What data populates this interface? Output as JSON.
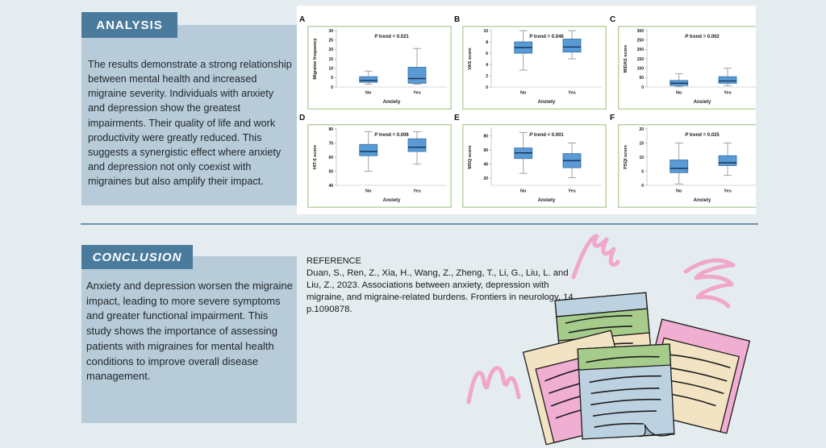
{
  "analysis": {
    "header": "ANALYSIS",
    "body": "The results demonstrate a strong relationship between mental health and increased migraine severity. Individuals with anxiety and depression show the greatest impairments. Their quality of life and work productivity were greatly reduced. This suggests a synergistic effect where anxiety and depression not only coexist with migraines but also amplify their impact."
  },
  "conclusion": {
    "header": "CONCLUSION",
    "body": "Anxiety and depression worsen the migraine impact, leading to more severe symptoms and greater functional impairment. This study shows the importance of assessing patients with migraines for mental health conditions to improve overall disease management."
  },
  "reference": {
    "heading": "REFERENCE",
    "citation": "Duan, S., Ren, Z., Xia, H., Wang, Z., Zheng, T., Li, G., Liu, L. and Liu, Z., 2023. Associations between anxiety, depression with migraine, and migraine-related burdens. Frontiers in neurology, 14, p.1090878."
  },
  "colors": {
    "background": "#e4ecef",
    "header_bar": "#4a7b9d",
    "body_panel": "#b7ccd8",
    "divider": "#6b93ad",
    "squiggle_pink": "#f0a7cb",
    "note_pink": "#f0aed2",
    "note_cream": "#f2e4c3",
    "note_green": "#a6cc8b",
    "note_blue": "#bdd2e0"
  },
  "chart_data": {
    "type": "boxplot-grid",
    "shared": {
      "xlabel": "Anxiety",
      "categories": [
        "No",
        "Yes"
      ],
      "grid": false,
      "legend": "none",
      "box_fill": "#5b9bd5",
      "box_border": "#2e6da4",
      "median_color": "#16365c",
      "whisker_color": "#8c8c8c",
      "frame_border": "#bcd3a4"
    },
    "plots": [
      {
        "letter": "A",
        "p_label": "P trend = 0.021",
        "ylabel": "Migraine frequency",
        "ylim": [
          0,
          30
        ],
        "yticks": [
          0,
          5,
          10,
          15,
          20,
          25,
          30
        ],
        "boxes": [
          {
            "category": "No",
            "whisker_low": 1.5,
            "q1": 2.5,
            "median": 3.5,
            "q3": 5.5,
            "whisker_high": 8.5
          },
          {
            "category": "Yes",
            "whisker_low": 1.5,
            "q1": 2.0,
            "median": 4.5,
            "q3": 10.5,
            "whisker_high": 20.5
          }
        ]
      },
      {
        "letter": "B",
        "p_label": "P trend = 0.046",
        "ylabel": "VAS score",
        "ylim": [
          0,
          10
        ],
        "yticks": [
          0,
          2,
          4,
          6,
          8,
          10
        ],
        "boxes": [
          {
            "category": "No",
            "whisker_low": 3,
            "q1": 6.0,
            "median": 7.0,
            "q3": 8.0,
            "whisker_high": 10
          },
          {
            "category": "Yes",
            "whisker_low": 5,
            "q1": 6.2,
            "median": 7.1,
            "q3": 8.5,
            "whisker_high": 10
          }
        ]
      },
      {
        "letter": "C",
        "p_label": "P trend = 0.002",
        "ylabel": "MIDAS score",
        "ylim": [
          0,
          300
        ],
        "yticks": [
          0,
          50,
          100,
          150,
          200,
          250,
          300
        ],
        "boxes": [
          {
            "category": "No",
            "whisker_low": 2,
            "q1": 8,
            "median": 20,
            "q3": 35,
            "whisker_high": 70
          },
          {
            "category": "Yes",
            "whisker_low": 8,
            "q1": 20,
            "median": 32,
            "q3": 55,
            "whisker_high": 100
          }
        ]
      },
      {
        "letter": "D",
        "p_label": "P trend = 0.006",
        "ylabel": "HIT-6 score",
        "ylim": [
          40,
          80
        ],
        "yticks": [
          40,
          50,
          60,
          70,
          80
        ],
        "boxes": [
          {
            "category": "No",
            "whisker_low": 50,
            "q1": 61,
            "median": 64,
            "q3": 69,
            "whisker_high": 78
          },
          {
            "category": "Yes",
            "whisker_low": 55,
            "q1": 64,
            "median": 67,
            "q3": 73,
            "whisker_high": 78
          }
        ]
      },
      {
        "letter": "E",
        "p_label": "P trend < 0.001",
        "ylabel": "MSQ score",
        "ylim": [
          10,
          90
        ],
        "yticks": [
          20,
          40,
          60,
          80
        ],
        "boxes": [
          {
            "category": "No",
            "whisker_low": 27,
            "q1": 48,
            "median": 56,
            "q3": 63,
            "whisker_high": 85
          },
          {
            "category": "Yes",
            "whisker_low": 21,
            "q1": 35,
            "median": 45,
            "q3": 55,
            "whisker_high": 70
          }
        ]
      },
      {
        "letter": "F",
        "p_label": "P trend = 0.025",
        "ylabel": "PSQI score",
        "ylim": [
          0,
          20
        ],
        "yticks": [
          0,
          5,
          10,
          15,
          20
        ],
        "boxes": [
          {
            "category": "No",
            "whisker_low": 0.5,
            "q1": 4.5,
            "median": 6,
            "q3": 9.0,
            "whisker_high": 15
          },
          {
            "category": "Yes",
            "whisker_low": 3.5,
            "q1": 7.0,
            "median": 8,
            "q3": 10.5,
            "whisker_high": 15
          }
        ]
      }
    ]
  }
}
